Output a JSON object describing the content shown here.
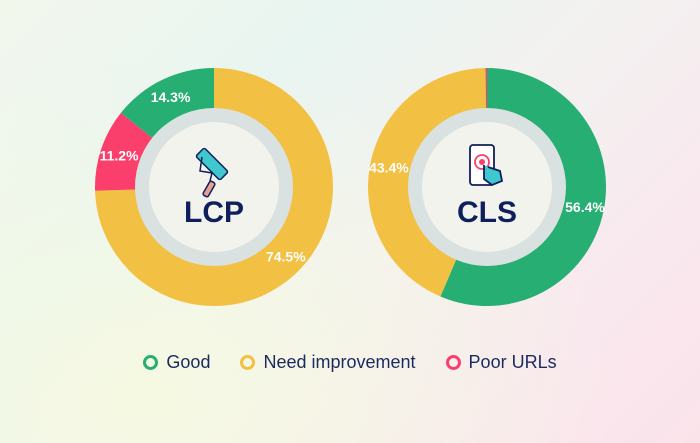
{
  "chart_data": [
    {
      "type": "pie",
      "title": "LCP",
      "icon": "paint-roller-icon",
      "categories": [
        "Good",
        "Need improvement",
        "Poor URLs"
      ],
      "values": [
        14.3,
        74.5,
        11.2
      ],
      "labels": [
        "14.3%",
        "74.5%",
        "11.2%"
      ],
      "order": [
        "Need improvement",
        "Poor URLs",
        "Good"
      ]
    },
    {
      "type": "pie",
      "title": "CLS",
      "icon": "smartphone-touch-icon",
      "categories": [
        "Good",
        "Need improvement",
        "Poor URLs"
      ],
      "values": [
        56.4,
        43.4,
        0.2
      ],
      "labels": [
        "56.4%",
        "43.4%",
        ""
      ],
      "order": [
        "Good",
        "Need improvement",
        "Poor URLs"
      ]
    }
  ],
  "legend": [
    {
      "label": "Good",
      "color": "#27ae72"
    },
    {
      "label": "Need improvement",
      "color": "#f2c043"
    },
    {
      "label": "Poor URLs",
      "color": "#fb3f6c"
    }
  ]
}
